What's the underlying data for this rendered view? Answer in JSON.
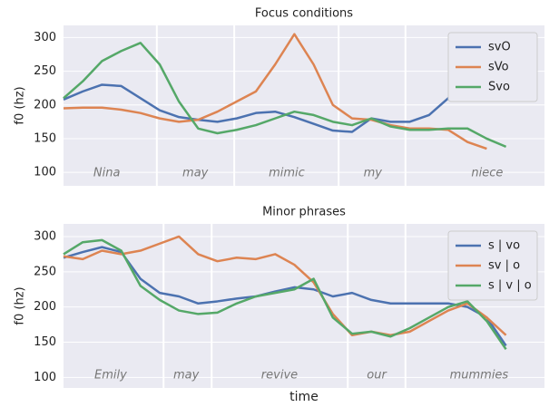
{
  "chart_data": [
    {
      "type": "line",
      "title": "Focus conditions",
      "ylabel": "f0 (hz)",
      "x": [
        0,
        4,
        8,
        12,
        16,
        20,
        24,
        28,
        32,
        36,
        40,
        44,
        48,
        52,
        56,
        60,
        64,
        68,
        72,
        76,
        80,
        84,
        88,
        92
      ],
      "xlim": [
        0,
        100
      ],
      "ylim": [
        80,
        318
      ],
      "yticks": [
        100,
        150,
        200,
        250,
        300
      ],
      "grid": true,
      "legend": "upper right",
      "series": [
        {
          "name": "svO",
          "color": "#4c72b0",
          "values": [
            208,
            220,
            230,
            228,
            210,
            192,
            182,
            178,
            175,
            180,
            188,
            190,
            182,
            172,
            162,
            160,
            180,
            175,
            175,
            185,
            210,
            245,
            260,
            230
          ]
        },
        {
          "name": "sVo",
          "color": "#dd8452",
          "values": [
            195,
            196,
            196,
            193,
            188,
            180,
            175,
            178,
            190,
            205,
            220,
            260,
            305,
            260,
            200,
            180,
            178,
            170,
            165,
            165,
            163,
            145,
            135,
            null
          ]
        },
        {
          "name": "Svo",
          "color": "#55a868",
          "values": [
            210,
            235,
            265,
            280,
            292,
            260,
            205,
            165,
            158,
            163,
            170,
            180,
            190,
            185,
            175,
            170,
            180,
            168,
            163,
            163,
            165,
            165,
            150,
            138
          ]
        }
      ],
      "boundaries": [
        19.4,
        35.5,
        57.2,
        71.1
      ],
      "annotations": [
        {
          "text": "Nina",
          "x": 9
        },
        {
          "text": "may",
          "x": 27.4
        },
        {
          "text": "mimic",
          "x": 46.4
        },
        {
          "text": "my",
          "x": 64.3
        },
        {
          "text": "niece",
          "x": 88.1
        }
      ]
    },
    {
      "type": "line",
      "title": "Minor phrases",
      "ylabel": "f0 (hz)",
      "xlabel": "time",
      "x": [
        0,
        4,
        8,
        12,
        16,
        20,
        24,
        28,
        32,
        36,
        40,
        44,
        48,
        52,
        56,
        60,
        64,
        68,
        72,
        76,
        80,
        84,
        88,
        92
      ],
      "xlim": [
        0,
        100
      ],
      "ylim": [
        85,
        318
      ],
      "yticks": [
        100,
        150,
        200,
        250,
        300
      ],
      "grid": true,
      "legend": "upper right",
      "series": [
        {
          "name": "s | vo",
          "color": "#4c72b0",
          "values": [
            270,
            278,
            285,
            278,
            240,
            220,
            215,
            205,
            208,
            212,
            215,
            222,
            228,
            225,
            215,
            220,
            210,
            205,
            205,
            205,
            205,
            200,
            185,
            145
          ]
        },
        {
          "name": "sv | o",
          "color": "#dd8452",
          "values": [
            272,
            268,
            280,
            275,
            280,
            290,
            300,
            275,
            265,
            270,
            268,
            275,
            260,
            235,
            190,
            160,
            165,
            160,
            165,
            180,
            195,
            205,
            185,
            160
          ]
        },
        {
          "name": "s | v | o",
          "color": "#55a868",
          "values": [
            275,
            292,
            295,
            280,
            230,
            210,
            195,
            190,
            192,
            205,
            215,
            220,
            225,
            240,
            185,
            162,
            165,
            158,
            170,
            185,
            200,
            208,
            180,
            140
          ]
        }
      ],
      "boundaries": [
        20.8,
        30.8,
        59.1,
        71.1
      ],
      "annotations": [
        {
          "text": "Emily",
          "x": 9.8
        },
        {
          "text": "may",
          "x": 25.5
        },
        {
          "text": "revive",
          "x": 44.9
        },
        {
          "text": "our",
          "x": 65.1
        },
        {
          "text": "mummies",
          "x": 86.4
        }
      ]
    }
  ]
}
